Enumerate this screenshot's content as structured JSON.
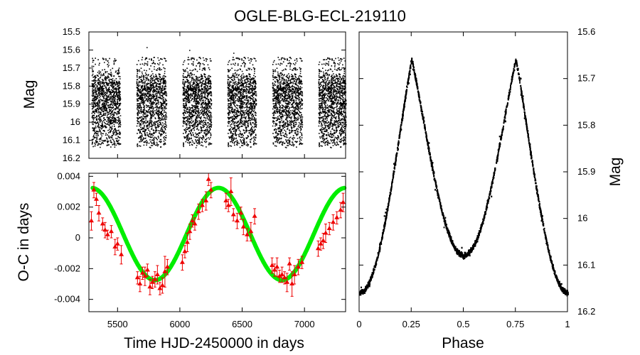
{
  "chart_data": [
    {
      "type": "scatter",
      "name": "light-curve-vs-time",
      "title": "OGLE-BLG-ECL-219110",
      "ylabel": "Mag",
      "xlabel": "",
      "xlim": [
        5270,
        7330
      ],
      "ylim": [
        15.5,
        16.2
      ],
      "y_inverted": true,
      "yticks": [
        15.5,
        15.6,
        15.7,
        15.8,
        15.9,
        16,
        16.1,
        16.2
      ],
      "ytick_labels": [
        "15.5",
        "15.6",
        "15.7",
        "15.8",
        "15.9",
        "16",
        "16.1",
        "16.2"
      ],
      "seasons": [
        {
          "start": 5290,
          "end": 5520
        },
        {
          "start": 5650,
          "end": 5890
        },
        {
          "start": 6020,
          "end": 6250
        },
        {
          "start": 6380,
          "end": 6610
        },
        {
          "start": 6740,
          "end": 6980
        },
        {
          "start": 7110,
          "end": 7330
        }
      ],
      "mag_range": [
        15.64,
        16.14
      ],
      "series": [
        {
          "name": "photometry",
          "color": "#000000"
        }
      ]
    },
    {
      "type": "scatter",
      "name": "o-c-diagram",
      "xlabel": "Time HJD-2450000 in days",
      "ylabel": "O-C in days",
      "xlim": [
        5270,
        7330
      ],
      "ylim": [
        -0.0048,
        0.0042
      ],
      "xticks": [
        5500,
        6000,
        6500,
        7000
      ],
      "xtick_labels": [
        "5500",
        "6000",
        "6500",
        "7000"
      ],
      "yticks": [
        0.004,
        0.002,
        0,
        -0.002,
        -0.004
      ],
      "ytick_labels": [
        "0.004",
        "0.002",
        "0",
        "-0.002",
        "-0.004"
      ],
      "fit": {
        "name": "LTTE fit",
        "color": "#00ee00",
        "amplitude": 0.003,
        "offset": 0.00025,
        "period_days": 1020,
        "phase_peak_time": 6310
      },
      "measurements": {
        "name": "O-C timings",
        "color": "#ee0000",
        "x": [
          5290,
          5310,
          5330,
          5350,
          5380,
          5400,
          5420,
          5450,
          5480,
          5500,
          5530,
          5660,
          5680,
          5700,
          5720,
          5740,
          5760,
          5780,
          5800,
          5820,
          5840,
          5860,
          5880,
          5900,
          6020,
          6040,
          6060,
          6080,
          6100,
          6120,
          6150,
          6180,
          6210,
          6230,
          6250,
          6370,
          6390,
          6410,
          6430,
          6460,
          6490,
          6510,
          6540,
          6570,
          6600,
          6740,
          6760,
          6780,
          6800,
          6820,
          6840,
          6860,
          6880,
          6900,
          6920,
          6950,
          6980,
          7110,
          7130,
          7150,
          7170,
          7200,
          7230,
          7260,
          7290,
          7310
        ],
        "y": [
          0.0011,
          0.0031,
          0.0025,
          0.0016,
          0.0009,
          0.0005,
          0.0002,
          0.0004,
          -0.0006,
          -0.0004,
          -0.0011,
          -0.0026,
          -0.003,
          -0.0023,
          -0.0025,
          -0.0021,
          -0.0032,
          -0.0029,
          -0.0027,
          -0.0024,
          -0.0033,
          -0.0031,
          -0.0022,
          -0.0019,
          -0.0016,
          -0.0009,
          -0.0003,
          0.0004,
          0.0011,
          0.0009,
          0.0017,
          0.0021,
          0.0024,
          0.0038,
          0.0031,
          0.0024,
          0.0021,
          0.003,
          0.0015,
          0.0011,
          0.0016,
          0.0007,
          0.0002,
          0.0004,
          0.0014,
          -0.0018,
          -0.0021,
          -0.0019,
          -0.0025,
          -0.0024,
          -0.0026,
          -0.0029,
          -0.0017,
          -0.003,
          -0.0024,
          -0.0019,
          -0.0016,
          -0.0007,
          -0.0004,
          -0.0002,
          0.0003,
          0.0006,
          0.001,
          0.0013,
          0.0018,
          0.0023
        ],
        "err": [
          0.0006,
          0.0005,
          0.0004,
          0.0005,
          0.0004,
          0.0005,
          0.0003,
          0.0004,
          0.0005,
          0.0004,
          0.0006,
          0.0004,
          0.0005,
          0.0004,
          0.0006,
          0.0004,
          0.0005,
          0.0004,
          0.0005,
          0.0006,
          0.0004,
          0.0005,
          0.001,
          0.0005,
          0.0005,
          0.0004,
          0.0006,
          0.0005,
          0.0004,
          0.0004,
          0.0005,
          0.0004,
          0.0006,
          0.0004,
          0.0005,
          0.0005,
          0.0004,
          0.0009,
          0.0004,
          0.0005,
          0.0004,
          0.0005,
          0.0004,
          0.0006,
          0.0005,
          0.0005,
          0.0004,
          0.0006,
          0.0004,
          0.0005,
          0.0004,
          0.0006,
          0.0004,
          0.0008,
          0.0006,
          0.0005,
          0.0004,
          0.0005,
          0.0004,
          0.0005,
          0.0006,
          0.0004,
          0.0005,
          0.0004,
          0.0005,
          0.0006
        ]
      }
    },
    {
      "type": "scatter",
      "name": "phased-light-curve",
      "xlabel": "Phase",
      "ylabel": "Mag",
      "xlim": [
        0,
        1
      ],
      "ylim": [
        15.6,
        16.2
      ],
      "y_inverted": true,
      "xticks": [
        0,
        0.25,
        0.5,
        0.75,
        1
      ],
      "xtick_labels": [
        "0",
        "0.25",
        "0.5",
        "0.75",
        "1"
      ],
      "yticks": [
        15.6,
        15.7,
        15.8,
        15.9,
        16,
        16.1,
        16.2
      ],
      "ytick_labels": [
        "15.6",
        "15.7",
        "15.8",
        "15.9",
        "16",
        "16.1",
        "16.2"
      ],
      "model": {
        "max_mag": 15.66,
        "primary_min_mag": 16.16,
        "secondary_min_mag": 16.08,
        "maxima_phases": [
          0.25,
          0.75
        ],
        "minima_phases": [
          0,
          0.5
        ]
      },
      "series": [
        {
          "name": "folded photometry",
          "color": "#000000"
        }
      ]
    }
  ]
}
